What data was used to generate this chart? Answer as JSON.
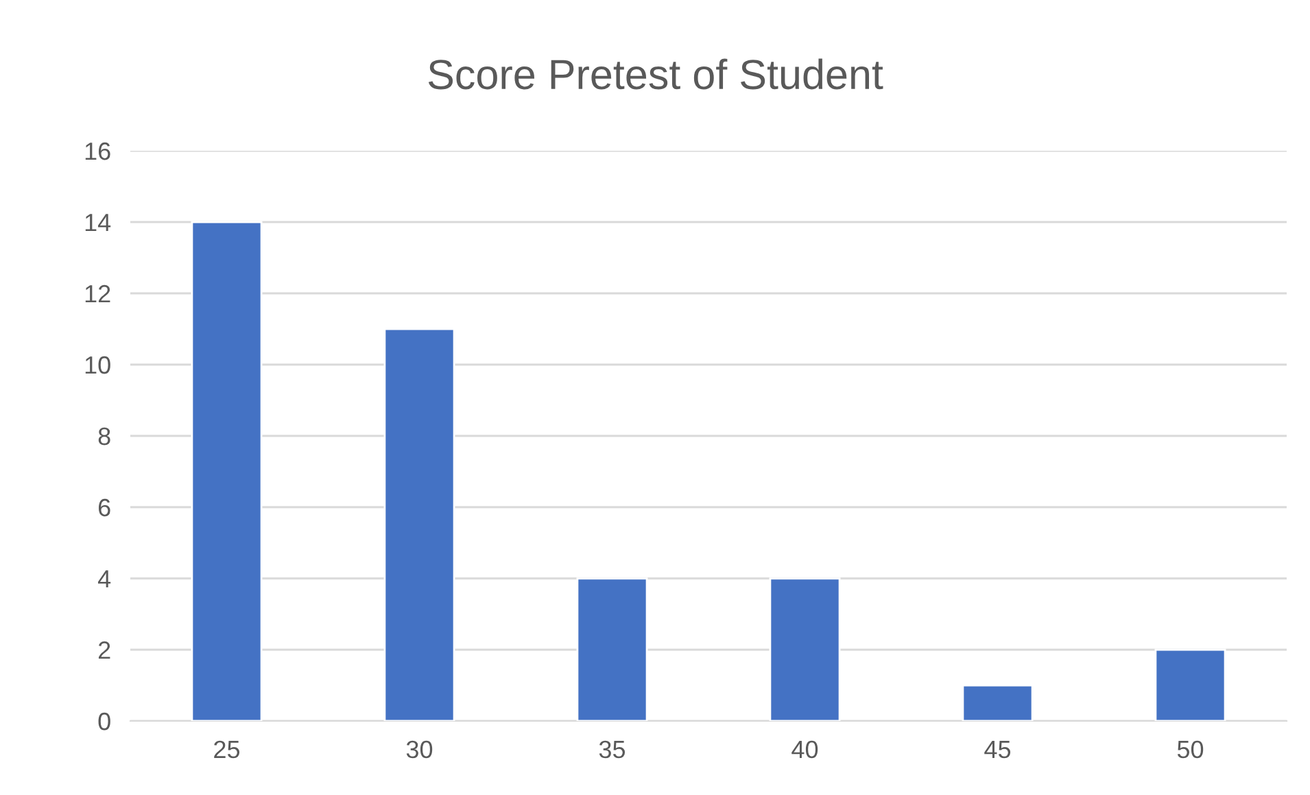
{
  "chart_data": {
    "type": "bar",
    "title": "Score Pretest of Student",
    "categories": [
      "25",
      "30",
      "35",
      "40",
      "45",
      "50"
    ],
    "values": [
      14,
      11,
      4,
      4,
      1,
      2
    ],
    "color": "#4472c4",
    "ylim": [
      0,
      16
    ],
    "yticks": [
      0,
      2,
      4,
      6,
      8,
      10,
      12,
      14,
      16
    ],
    "grid": "y"
  }
}
